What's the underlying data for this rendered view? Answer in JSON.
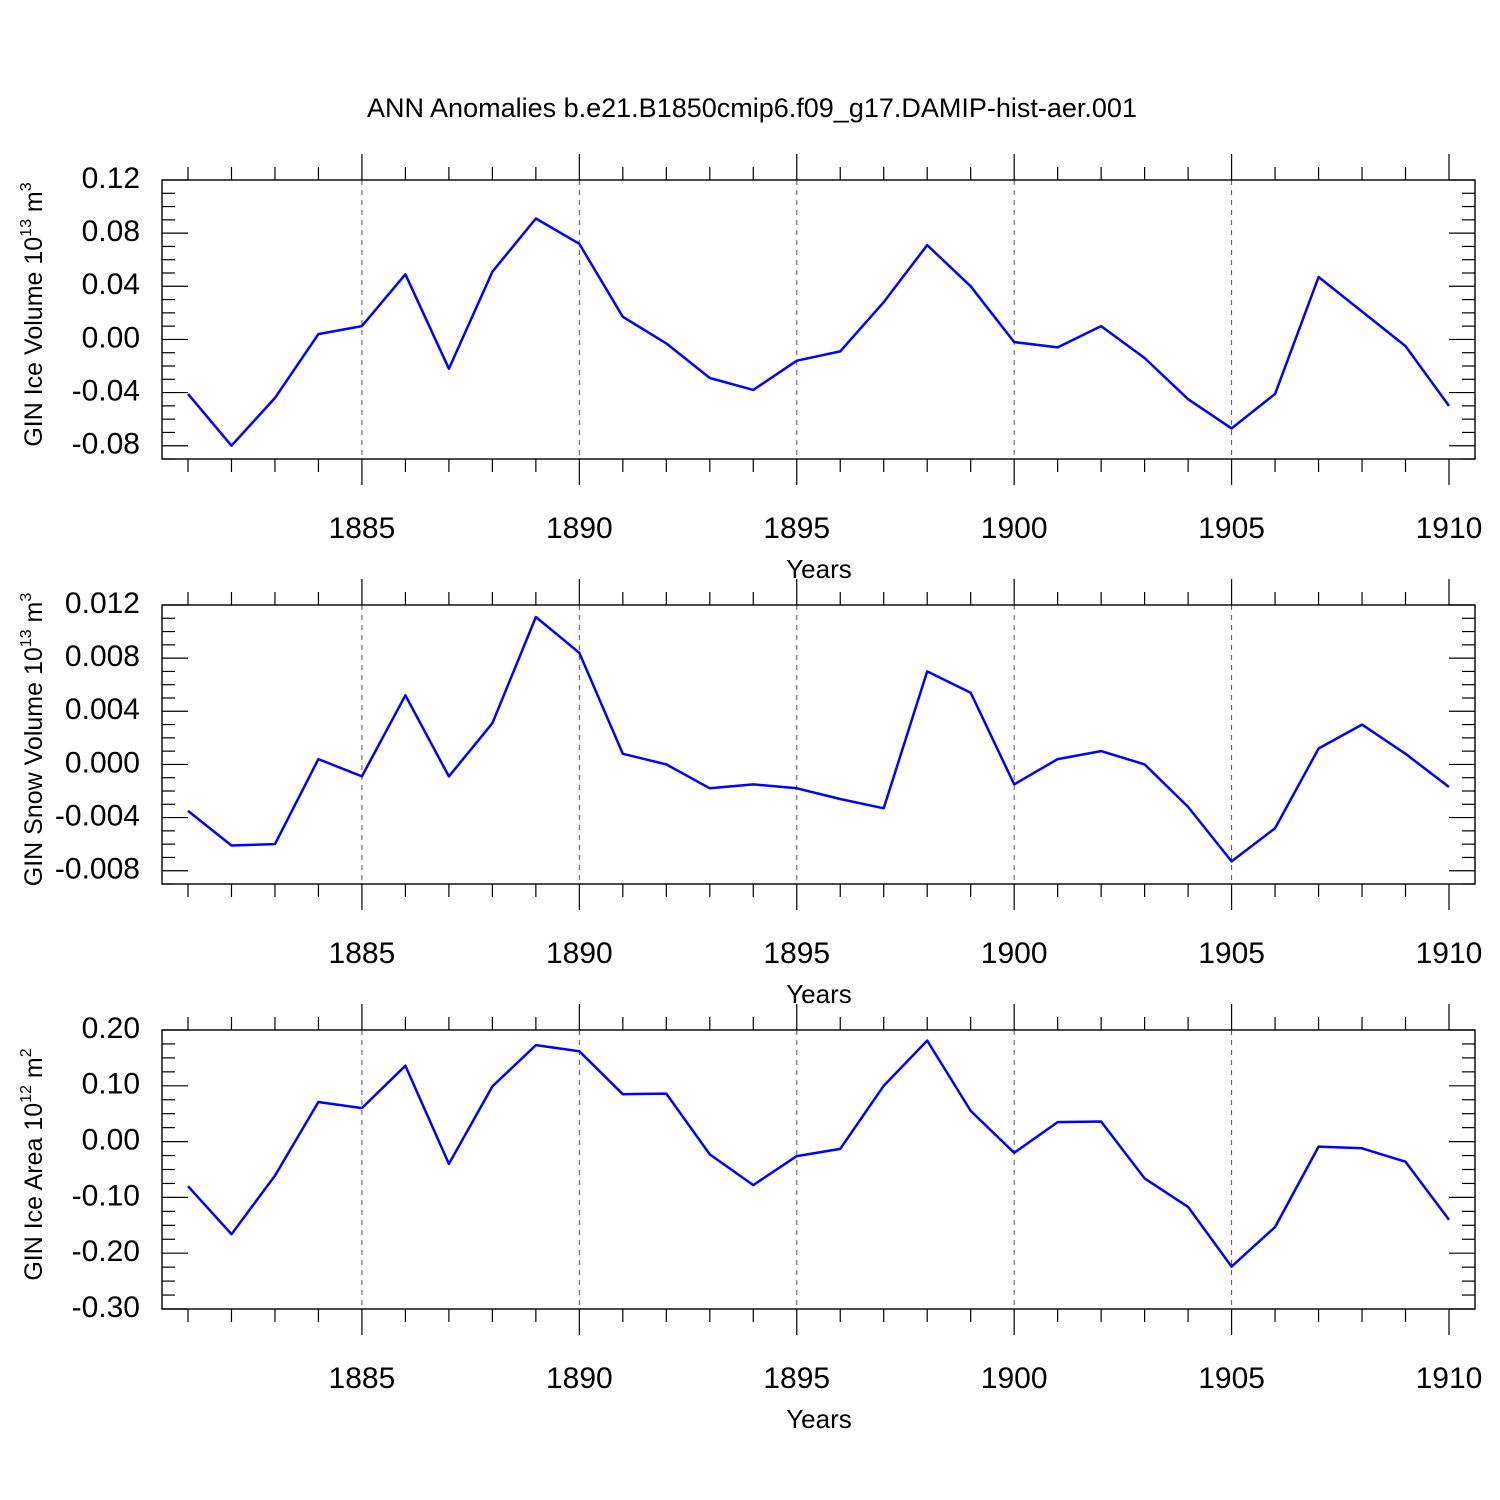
{
  "title": "ANN Anomalies b.e21.B1850cmip6.f09_g17.DAMIP-hist-aer.001",
  "line_color": "#0000ff",
  "chart_data": [
    {
      "type": "line",
      "ylabel": "GIN Ice Volume 10",
      "ylabel_exp": "13",
      "ylabel_unit": " m",
      "ylabel_unit_exp": "3",
      "xlabel": "Years",
      "xlim": [
        1881,
        1910
      ],
      "ylim": [
        -0.09,
        0.12
      ],
      "xticks": [
        1885,
        1890,
        1895,
        1900,
        1905,
        1910
      ],
      "yticks": [
        0.12,
        0.08,
        0.04,
        0.0,
        -0.04,
        -0.08
      ],
      "ytick_labels": [
        "0.12",
        "0.08",
        "0.04",
        "0.00",
        "-0.04",
        "-0.08"
      ],
      "x": [
        1881,
        1882,
        1883,
        1884,
        1885,
        1886,
        1887,
        1888,
        1889,
        1890,
        1891,
        1892,
        1893,
        1894,
        1895,
        1896,
        1897,
        1898,
        1899,
        1900,
        1901,
        1902,
        1903,
        1904,
        1905,
        1906,
        1907,
        1908,
        1909,
        1910
      ],
      "series": [
        {
          "values": [
            -0.041,
            -0.08,
            -0.044,
            0.004,
            0.01,
            0.049,
            -0.022,
            0.051,
            0.091,
            0.072,
            0.017,
            -0.003,
            -0.029,
            -0.038,
            -0.016,
            -0.009,
            0.028,
            0.071,
            0.04,
            -0.002,
            -0.006,
            0.01,
            -0.014,
            -0.045,
            -0.067,
            -0.041,
            0.047,
            0.021,
            -0.005,
            -0.05
          ]
        }
      ]
    },
    {
      "type": "line",
      "ylabel": "GIN Snow Volume 10",
      "ylabel_exp": "13",
      "ylabel_unit": " m",
      "ylabel_unit_exp": "3",
      "xlabel": "Years",
      "xlim": [
        1881,
        1910
      ],
      "ylim": [
        -0.009,
        0.012
      ],
      "xticks": [
        1885,
        1890,
        1895,
        1900,
        1905,
        1910
      ],
      "yticks": [
        0.012,
        0.008,
        0.004,
        0.0,
        -0.004,
        -0.008
      ],
      "ytick_labels": [
        "0.012",
        "0.008",
        "0.004",
        "0.000",
        "-0.004",
        "-0.008"
      ],
      "x": [
        1881,
        1882,
        1883,
        1884,
        1885,
        1886,
        1887,
        1888,
        1889,
        1890,
        1891,
        1892,
        1893,
        1894,
        1895,
        1896,
        1897,
        1898,
        1899,
        1900,
        1901,
        1902,
        1903,
        1904,
        1905,
        1906,
        1907,
        1908,
        1909,
        1910
      ],
      "series": [
        {
          "values": [
            -0.0035,
            -0.0061,
            -0.006,
            0.0004,
            -0.0009,
            0.0052,
            -0.0009,
            0.0031,
            0.0111,
            0.0084,
            0.0008,
            0.0,
            -0.0018,
            -0.0015,
            -0.0018,
            -0.0026,
            -0.0033,
            0.007,
            0.0054,
            -0.0015,
            0.0004,
            0.001,
            0.0,
            -0.0032,
            -0.0073,
            -0.0048,
            0.0012,
            0.003,
            0.0008,
            -0.0017
          ]
        }
      ]
    },
    {
      "type": "line",
      "ylabel": "GIN Ice Area 10",
      "ylabel_exp": "12",
      "ylabel_unit": " m",
      "ylabel_unit_exp": "2",
      "xlabel": "Years",
      "xlim": [
        1881,
        1910
      ],
      "ylim": [
        -0.3,
        0.2
      ],
      "xticks": [
        1885,
        1890,
        1895,
        1900,
        1905,
        1910
      ],
      "yticks": [
        0.2,
        0.1,
        0.0,
        -0.1,
        -0.2,
        -0.3
      ],
      "ytick_labels": [
        "0.20",
        "0.10",
        "0.00",
        "-0.10",
        "-0.20",
        "-0.30"
      ],
      "x": [
        1881,
        1882,
        1883,
        1884,
        1885,
        1886,
        1887,
        1888,
        1889,
        1890,
        1891,
        1892,
        1893,
        1894,
        1895,
        1896,
        1897,
        1898,
        1899,
        1900,
        1901,
        1902,
        1903,
        1904,
        1905,
        1906,
        1907,
        1908,
        1909,
        1910
      ],
      "series": [
        {
          "values": [
            -0.08,
            -0.166,
            -0.061,
            0.071,
            0.06,
            0.136,
            -0.04,
            0.099,
            0.173,
            0.162,
            0.085,
            0.086,
            -0.023,
            -0.078,
            -0.026,
            -0.013,
            0.1,
            0.181,
            0.055,
            -0.02,
            0.035,
            0.036,
            -0.066,
            -0.117,
            -0.224,
            -0.153,
            -0.009,
            -0.012,
            -0.036,
            -0.14
          ]
        }
      ]
    }
  ]
}
